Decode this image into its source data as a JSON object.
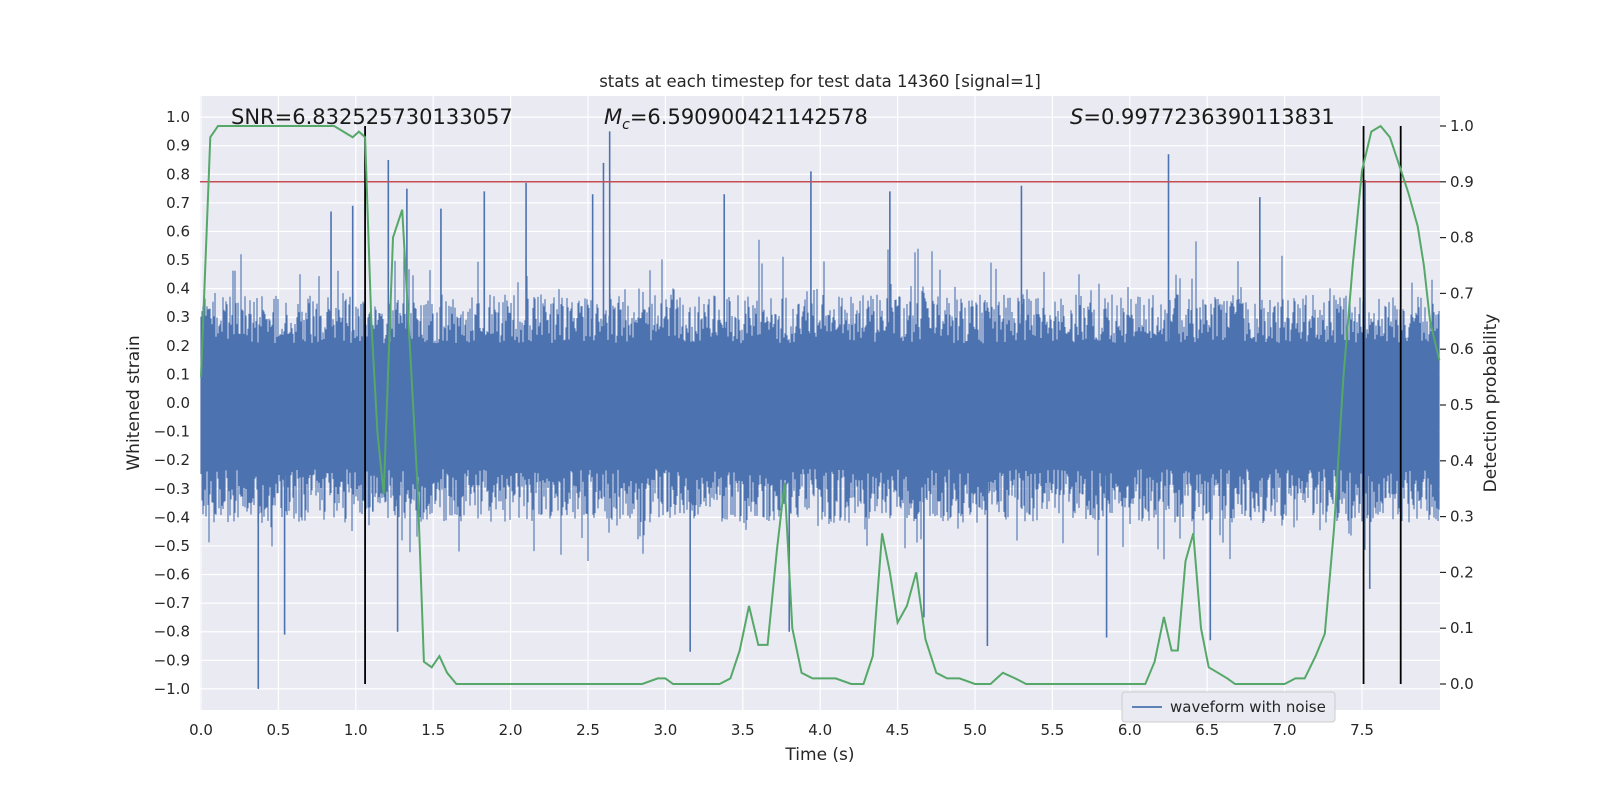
{
  "chart_data": {
    "type": "line",
    "title": "stats at each timestep for test data 14360 [signal=1]",
    "xlabel": "Time (s)",
    "ylabel": "Whitened strain",
    "y2label": "Detection probability",
    "xlim": [
      0.0,
      8.0
    ],
    "ylim": [
      -1.1,
      1.1
    ],
    "y2lim": [
      -0.05,
      1.05
    ],
    "xticks": [
      "0.0",
      "0.5",
      "1.0",
      "1.5",
      "2.0",
      "2.5",
      "3.0",
      "3.5",
      "4.0",
      "4.5",
      "5.0",
      "5.5",
      "6.0",
      "6.5",
      "7.0",
      "7.5"
    ],
    "yticks": [
      "1.0",
      "0.9",
      "0.8",
      "0.7",
      "0.6",
      "0.5",
      "0.4",
      "0.3",
      "0.2",
      "0.1",
      "0.0",
      "−0.1",
      "−0.2",
      "−0.3",
      "−0.4",
      "−0.5",
      "−0.6",
      "−0.7",
      "−0.8",
      "−0.9",
      "−1.0"
    ],
    "y2ticks": [
      "1.0",
      "0.9",
      "0.8",
      "0.7",
      "0.6",
      "0.5",
      "0.4",
      "0.3",
      "0.2",
      "0.1",
      "0.0"
    ],
    "grid": true,
    "legend_position": "lower-right",
    "annotations": {
      "snr": "SNR=6.832525730133057",
      "mc_symbol": "M",
      "mc_sub": "c",
      "mc_value": "=6.590900421142578",
      "s_symbol": "S",
      "s_value": "=0.9977236390113831"
    },
    "threshold": 0.9,
    "vertical_markers": [
      1.06,
      7.51,
      7.75
    ],
    "colors": {
      "background": "#eaeaf2",
      "grid": "#ffffff",
      "waveform": "#4c72b0",
      "probability": "#55a868",
      "threshold": "#c44e52",
      "markers": "#000000"
    },
    "series": [
      {
        "name": "waveform with noise",
        "axis": "left",
        "style": "dense-noise",
        "envelope_typical": [
          -0.42,
          0.38
        ],
        "spikes": [
          {
            "x": 0.37,
            "y": -1.0
          },
          {
            "x": 0.54,
            "y": -0.81
          },
          {
            "x": 0.84,
            "y": 0.67
          },
          {
            "x": 0.98,
            "y": 0.69
          },
          {
            "x": 1.11,
            "y": -0.38
          },
          {
            "x": 1.21,
            "y": 0.85
          },
          {
            "x": 1.27,
            "y": -0.8
          },
          {
            "x": 1.33,
            "y": 0.75
          },
          {
            "x": 1.55,
            "y": 0.68
          },
          {
            "x": 1.83,
            "y": 0.74
          },
          {
            "x": 2.1,
            "y": 0.77
          },
          {
            "x": 2.53,
            "y": 0.73
          },
          {
            "x": 2.6,
            "y": 0.84
          },
          {
            "x": 2.64,
            "y": 0.95
          },
          {
            "x": 3.16,
            "y": -0.87
          },
          {
            "x": 3.38,
            "y": 0.73
          },
          {
            "x": 3.8,
            "y": -0.8
          },
          {
            "x": 3.94,
            "y": 0.81
          },
          {
            "x": 4.45,
            "y": 0.74
          },
          {
            "x": 4.67,
            "y": -0.75
          },
          {
            "x": 5.08,
            "y": -0.85
          },
          {
            "x": 5.3,
            "y": 0.76
          },
          {
            "x": 5.85,
            "y": -0.82
          },
          {
            "x": 6.25,
            "y": 0.87
          },
          {
            "x": 6.52,
            "y": -0.83
          },
          {
            "x": 6.84,
            "y": 0.72
          },
          {
            "x": 7.52,
            "y": 0.78
          },
          {
            "x": 7.55,
            "y": -0.65
          }
        ]
      },
      {
        "name": "Detection probability",
        "axis": "right",
        "style": "line",
        "x": [
          0.0,
          0.06,
          0.11,
          0.17,
          0.3,
          0.5,
          0.7,
          0.8,
          0.86,
          0.92,
          0.98,
          1.02,
          1.06,
          1.1,
          1.14,
          1.18,
          1.24,
          1.3,
          1.35,
          1.4,
          1.44,
          1.49,
          1.54,
          1.59,
          1.65,
          1.7,
          1.8,
          1.9,
          2.0,
          2.1,
          2.2,
          2.4,
          2.5,
          2.7,
          2.85,
          2.95,
          3.0,
          3.05,
          3.15,
          3.25,
          3.35,
          3.42,
          3.48,
          3.54,
          3.6,
          3.66,
          3.72,
          3.77,
          3.82,
          3.88,
          3.95,
          4.0,
          4.1,
          4.2,
          4.28,
          4.34,
          4.4,
          4.45,
          4.5,
          4.56,
          4.62,
          4.68,
          4.75,
          4.82,
          4.9,
          5.0,
          5.1,
          5.18,
          5.26,
          5.33,
          5.4,
          5.5,
          5.7,
          5.9,
          6.1,
          6.16,
          6.22,
          6.27,
          6.31,
          6.36,
          6.41,
          6.46,
          6.51,
          6.57,
          6.63,
          6.68,
          6.74,
          6.8,
          6.9,
          7.0,
          7.07,
          7.13,
          7.2,
          7.26,
          7.32,
          7.38,
          7.44,
          7.5,
          7.56,
          7.62,
          7.68,
          7.74,
          7.8,
          7.86,
          7.9,
          7.94,
          8.0
        ],
        "y": [
          0.55,
          0.98,
          1.0,
          1.0,
          1.0,
          1.0,
          1.0,
          1.0,
          1.0,
          0.99,
          0.98,
          0.99,
          0.98,
          0.65,
          0.45,
          0.34,
          0.8,
          0.85,
          0.6,
          0.35,
          0.04,
          0.03,
          0.05,
          0.02,
          0.0,
          0.0,
          0.0,
          0.0,
          0.0,
          0.0,
          0.0,
          0.0,
          0.0,
          0.0,
          0.0,
          0.01,
          0.01,
          0.0,
          0.0,
          0.0,
          0.0,
          0.01,
          0.06,
          0.14,
          0.07,
          0.07,
          0.24,
          0.36,
          0.1,
          0.02,
          0.01,
          0.01,
          0.01,
          0.0,
          0.0,
          0.05,
          0.27,
          0.2,
          0.11,
          0.14,
          0.2,
          0.08,
          0.02,
          0.01,
          0.01,
          0.0,
          0.0,
          0.02,
          0.01,
          0.0,
          0.0,
          0.0,
          0.0,
          0.0,
          0.0,
          0.04,
          0.12,
          0.06,
          0.06,
          0.22,
          0.27,
          0.1,
          0.03,
          0.02,
          0.01,
          0.0,
          0.0,
          0.0,
          0.0,
          0.0,
          0.01,
          0.01,
          0.05,
          0.09,
          0.28,
          0.55,
          0.75,
          0.92,
          0.99,
          1.0,
          0.98,
          0.93,
          0.88,
          0.82,
          0.75,
          0.65,
          0.58
        ]
      }
    ]
  }
}
